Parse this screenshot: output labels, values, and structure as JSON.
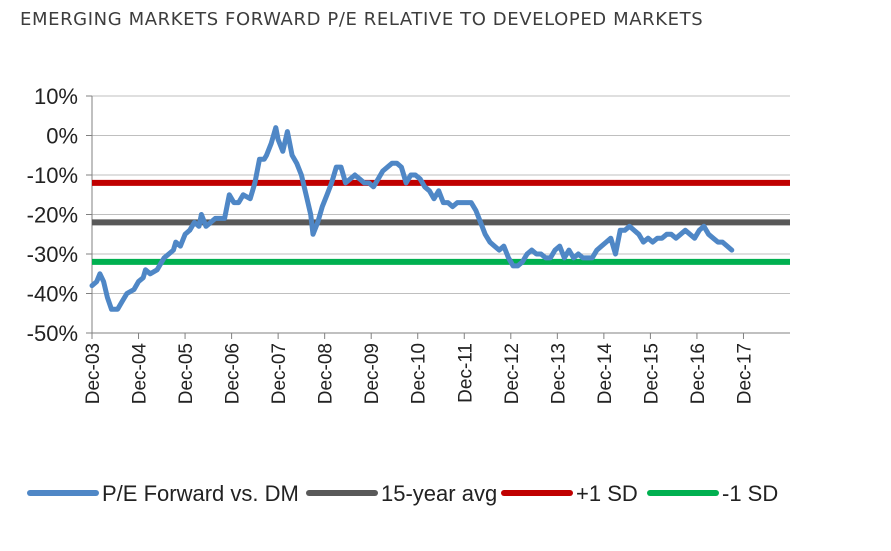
{
  "page": {
    "title": "EMERGING MARKETS FORWARD P/E RELATIVE TO DEVELOPED MARKETS"
  },
  "chart_data": {
    "type": "line",
    "title": "EMERGING MARKETS FORWARD P/E RELATIVE TO DEVELOPED MARKETS",
    "xlabel": "",
    "ylabel": "",
    "ylim": [
      -50,
      10
    ],
    "yticks": [
      10,
      0,
      -10,
      -20,
      -30,
      -40,
      -50
    ],
    "ytick_labels": [
      "10%",
      "0%",
      "-10%",
      "-20%",
      "-30%",
      "-40%",
      "-50%"
    ],
    "xlim": [
      0,
      15
    ],
    "xticks": [
      0,
      1,
      2,
      3,
      4,
      5,
      6,
      7,
      8,
      9,
      10,
      11,
      12,
      13,
      14
    ],
    "xtick_labels": [
      "Dec-03",
      "Dec-04",
      "Dec-05",
      "Dec-06",
      "Dec-07",
      "Dec-08",
      "Dec-09",
      "Dec-10",
      "Dec-11",
      "Dec-12",
      "Dec-13",
      "Dec-14",
      "Dec-15",
      "Dec-16",
      "Dec-17"
    ],
    "grid": {
      "horizontal": true,
      "vertical": false
    },
    "legend": {
      "position": "bottom"
    },
    "series": [
      {
        "name": "P/E Forward vs. DM",
        "color": "#4f87c6",
        "kind": "line",
        "points": [
          [
            0.0,
            -38
          ],
          [
            0.1,
            -37
          ],
          [
            0.17,
            -35
          ],
          [
            0.25,
            -37
          ],
          [
            0.33,
            -41
          ],
          [
            0.42,
            -44
          ],
          [
            0.55,
            -44
          ],
          [
            0.65,
            -42
          ],
          [
            0.75,
            -40
          ],
          [
            0.9,
            -39
          ],
          [
            1.0,
            -37
          ],
          [
            1.1,
            -36
          ],
          [
            1.15,
            -34
          ],
          [
            1.25,
            -35
          ],
          [
            1.4,
            -34
          ],
          [
            1.55,
            -31
          ],
          [
            1.65,
            -30
          ],
          [
            1.75,
            -29
          ],
          [
            1.8,
            -27
          ],
          [
            1.9,
            -28
          ],
          [
            2.0,
            -25
          ],
          [
            2.1,
            -24
          ],
          [
            2.2,
            -22
          ],
          [
            2.3,
            -23
          ],
          [
            2.35,
            -20
          ],
          [
            2.45,
            -23
          ],
          [
            2.55,
            -22
          ],
          [
            2.65,
            -21
          ],
          [
            2.75,
            -21
          ],
          [
            2.85,
            -21
          ],
          [
            2.95,
            -15
          ],
          [
            3.05,
            -17
          ],
          [
            3.15,
            -17
          ],
          [
            3.25,
            -15
          ],
          [
            3.4,
            -16
          ],
          [
            3.5,
            -12
          ],
          [
            3.6,
            -6
          ],
          [
            3.7,
            -6
          ],
          [
            3.75,
            -5
          ],
          [
            3.85,
            -2
          ],
          [
            3.95,
            2
          ],
          [
            4.0,
            -1
          ],
          [
            4.1,
            -4
          ],
          [
            4.2,
            1
          ],
          [
            4.3,
            -5
          ],
          [
            4.4,
            -7
          ],
          [
            4.5,
            -10
          ],
          [
            4.6,
            -15
          ],
          [
            4.7,
            -20
          ],
          [
            4.75,
            -25
          ],
          [
            4.85,
            -22
          ],
          [
            4.95,
            -18
          ],
          [
            5.05,
            -15
          ],
          [
            5.15,
            -12
          ],
          [
            5.25,
            -8
          ],
          [
            5.35,
            -8
          ],
          [
            5.45,
            -12
          ],
          [
            5.55,
            -11
          ],
          [
            5.65,
            -10
          ],
          [
            5.75,
            -11
          ],
          [
            5.85,
            -12
          ],
          [
            5.95,
            -12
          ],
          [
            6.05,
            -13
          ],
          [
            6.15,
            -11
          ],
          [
            6.25,
            -9
          ],
          [
            6.35,
            -8
          ],
          [
            6.45,
            -7
          ],
          [
            6.55,
            -7
          ],
          [
            6.65,
            -8
          ],
          [
            6.75,
            -12
          ],
          [
            6.85,
            -10
          ],
          [
            6.95,
            -10
          ],
          [
            7.05,
            -11
          ],
          [
            7.15,
            -13
          ],
          [
            7.25,
            -14
          ],
          [
            7.35,
            -16
          ],
          [
            7.45,
            -14
          ],
          [
            7.55,
            -17
          ],
          [
            7.65,
            -17
          ],
          [
            7.75,
            -18
          ],
          [
            7.85,
            -17
          ],
          [
            7.95,
            -17
          ],
          [
            8.05,
            -17
          ],
          [
            8.15,
            -17
          ],
          [
            8.25,
            -19
          ],
          [
            8.35,
            -22
          ],
          [
            8.45,
            -25
          ],
          [
            8.55,
            -27
          ],
          [
            8.65,
            -28
          ],
          [
            8.75,
            -29
          ],
          [
            8.85,
            -28
          ],
          [
            8.95,
            -31
          ],
          [
            9.05,
            -33
          ],
          [
            9.15,
            -33
          ],
          [
            9.25,
            -32
          ],
          [
            9.35,
            -30
          ],
          [
            9.45,
            -29
          ],
          [
            9.55,
            -30
          ],
          [
            9.65,
            -30
          ],
          [
            9.75,
            -31
          ],
          [
            9.85,
            -31
          ],
          [
            9.95,
            -29
          ],
          [
            10.05,
            -28
          ],
          [
            10.15,
            -31
          ],
          [
            10.25,
            -29
          ],
          [
            10.35,
            -31
          ],
          [
            10.45,
            -30
          ],
          [
            10.55,
            -31
          ],
          [
            10.65,
            -31
          ],
          [
            10.75,
            -31
          ],
          [
            10.85,
            -29
          ],
          [
            10.95,
            -28
          ],
          [
            11.05,
            -27
          ],
          [
            11.15,
            -26
          ],
          [
            11.25,
            -30
          ],
          [
            11.35,
            -24
          ],
          [
            11.45,
            -24
          ],
          [
            11.55,
            -23
          ],
          [
            11.65,
            -24
          ],
          [
            11.75,
            -25
          ],
          [
            11.85,
            -27
          ],
          [
            11.95,
            -26
          ],
          [
            12.05,
            -27
          ],
          [
            12.15,
            -26
          ],
          [
            12.25,
            -26
          ],
          [
            12.35,
            -25
          ],
          [
            12.45,
            -25
          ],
          [
            12.55,
            -26
          ],
          [
            12.65,
            -25
          ],
          [
            12.75,
            -24
          ],
          [
            12.85,
            -25
          ],
          [
            12.95,
            -26
          ],
          [
            13.05,
            -24
          ],
          [
            13.15,
            -23
          ],
          [
            13.25,
            -25
          ],
          [
            13.35,
            -26
          ],
          [
            13.45,
            -27
          ],
          [
            13.55,
            -27
          ],
          [
            13.65,
            -28
          ],
          [
            13.75,
            -29
          ]
        ]
      },
      {
        "name": "15-year avg",
        "color": "#595959",
        "kind": "hline",
        "value": -22
      },
      {
        "name": "+1 SD",
        "color": "#c00000",
        "kind": "hline",
        "value": -12
      },
      {
        "name": "-1 SD",
        "color": "#00b050",
        "kind": "hline",
        "value": -32
      }
    ]
  }
}
